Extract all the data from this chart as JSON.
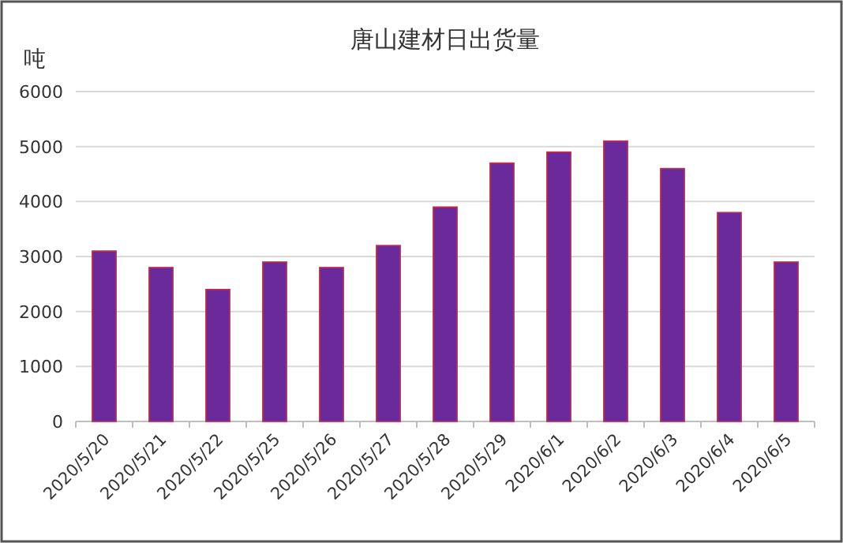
{
  "chart_data": {
    "type": "bar",
    "title": "唐山建材日出货量",
    "ylabel": "吨",
    "categories": [
      "2020/5/20",
      "2020/5/21",
      "2020/5/22",
      "2020/5/25",
      "2020/5/26",
      "2020/5/27",
      "2020/5/28",
      "2020/5/29",
      "2020/6/1",
      "2020/6/2",
      "2020/6/3",
      "2020/6/4",
      "2020/6/5"
    ],
    "values": [
      3100,
      2800,
      2400,
      2900,
      2800,
      3200,
      3900,
      4700,
      4900,
      5100,
      4600,
      3800,
      2900
    ],
    "color": "#6a2a9c",
    "ylim": [
      0,
      6000
    ],
    "yticks": [
      0,
      1000,
      2000,
      3000,
      4000,
      5000,
      6000
    ],
    "grid": "y"
  }
}
